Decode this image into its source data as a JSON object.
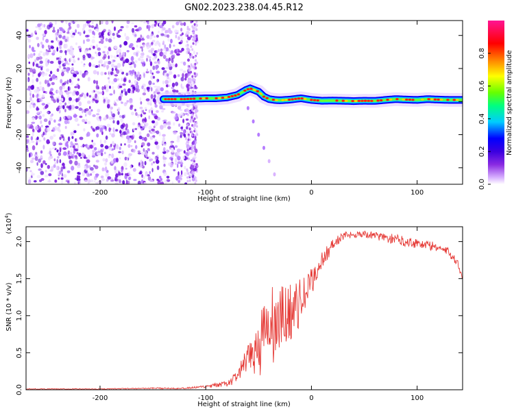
{
  "title": "GN02.2023.238.04.45.R12",
  "chart_data": [
    {
      "type": "heatmap",
      "xlabel": "Height of straight line (km)",
      "ylabel": "Frequency (Hz)",
      "xlim": [
        -270,
        143
      ],
      "ylim": [
        -50,
        49
      ],
      "xticks": [
        -200,
        -100,
        0,
        100
      ],
      "yticks": [
        -40,
        -20,
        0,
        20,
        40
      ],
      "colorbar": {
        "label": "Normalized spectral amplitude",
        "range": [
          0,
          1
        ],
        "ticks": [
          "0.0",
          "0.2",
          "0.4",
          "0.6",
          "0.8"
        ],
        "colormap": [
          "#ffffff",
          "#d9b3ff",
          "#8a2be2",
          "#3b00e0",
          "#0000ff",
          "#00ccff",
          "#00ff80",
          "#66ff00",
          "#ffff00",
          "#ff8000",
          "#ff0000",
          "#ff1493"
        ]
      },
      "noise_region_km": [
        -270,
        -108
      ],
      "signal_track": {
        "x": [
          -140,
          -120,
          -100,
          -90,
          -80,
          -70,
          -62,
          -58,
          -50,
          -45,
          -40,
          -35,
          -30,
          -20,
          -10,
          0,
          10,
          20,
          30,
          40,
          50,
          60,
          70,
          80,
          90,
          100,
          110,
          120,
          130,
          143
        ],
        "y": [
          1.5,
          1.5,
          2,
          2,
          2.5,
          4,
          7,
          8,
          6,
          3,
          1.5,
          1,
          0.8,
          1.2,
          2,
          1,
          0.5,
          0.6,
          0.5,
          0.3,
          0.5,
          0.4,
          1,
          1.5,
          1.2,
          1,
          1.5,
          1.2,
          1,
          1
        ]
      },
      "secondary_streak": {
        "x": [
          -60,
          -55,
          -50,
          -45,
          -40,
          -35
        ],
        "y": [
          -4,
          -12,
          -20,
          -28,
          -36,
          -44
        ]
      }
    },
    {
      "type": "line",
      "xlabel": "Height of straight line (km)",
      "ylabel": "SNR (10 * v/v)",
      "y_multiplier": "(x10",
      "y_multiplier_exp": "4",
      "y_multiplier_close": ")",
      "xlim": [
        -270,
        143
      ],
      "ylim": [
        0,
        2.2
      ],
      "xticks": [
        -200,
        -100,
        0,
        100
      ],
      "yticks": [
        "0.0",
        "0.5",
        "1.0",
        "1.5",
        "2.0"
      ],
      "series": [
        {
          "color": "#e53935",
          "x": [
            -270,
            -200,
            -150,
            -120,
            -110,
            -100,
            -90,
            -80,
            -75,
            -70,
            -65,
            -60,
            -55,
            -50,
            -45,
            -40,
            -35,
            -30,
            -25,
            -20,
            -15,
            -10,
            -5,
            0,
            5,
            10,
            15,
            20,
            25,
            30,
            40,
            50,
            60,
            70,
            80,
            90,
            100,
            110,
            120,
            130,
            135,
            140,
            143
          ],
          "values": [
            0.01,
            0.01,
            0.02,
            0.02,
            0.03,
            0.04,
            0.06,
            0.08,
            0.12,
            0.2,
            0.3,
            0.4,
            0.5,
            0.6,
            0.7,
            0.8,
            0.85,
            0.9,
            1.0,
            1.05,
            1.1,
            1.2,
            1.3,
            1.45,
            1.6,
            1.75,
            1.85,
            1.95,
            2.02,
            2.07,
            2.1,
            2.1,
            2.08,
            2.05,
            2.03,
            2.0,
            1.98,
            1.95,
            1.92,
            1.85,
            1.78,
            1.65,
            1.52
          ],
          "noise_envelope": [
            0.005,
            0.005,
            0.008,
            0.01,
            0.015,
            0.02,
            0.03,
            0.04,
            0.06,
            0.1,
            0.15,
            0.2,
            0.3,
            0.45,
            0.55,
            0.6,
            0.55,
            0.5,
            0.45,
            0.4,
            0.35,
            0.3,
            0.25,
            0.2,
            0.15,
            0.12,
            0.1,
            0.08,
            0.07,
            0.06,
            0.05,
            0.05,
            0.05,
            0.06,
            0.07,
            0.07,
            0.07,
            0.07,
            0.06,
            0.06,
            0.06,
            0.06,
            0.05
          ]
        }
      ]
    }
  ]
}
